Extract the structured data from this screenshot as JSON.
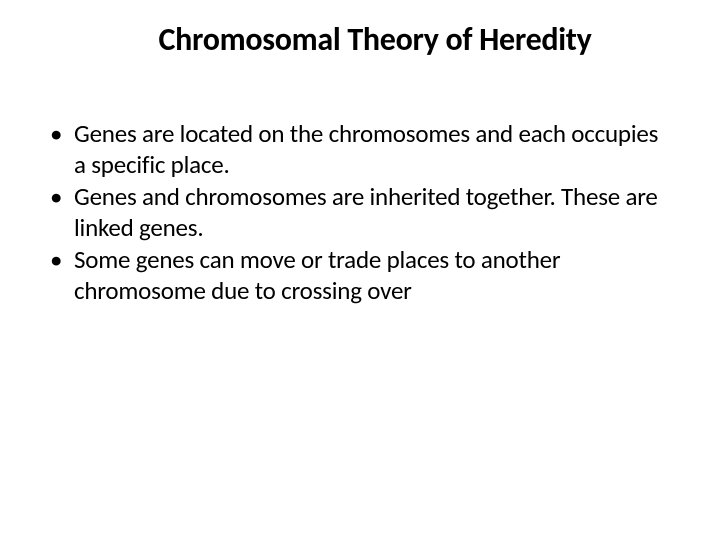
{
  "title": "Chromosomal Theory of Heredity",
  "bullets": [
    "Genes are located on the chromosomes and each occupies a specific place.",
    "Genes and chromosomes are inherited together. These are linked genes.",
    "Some genes can move or trade places to another chromosome due to crossing over"
  ],
  "style": {
    "background_color": "#ffffff",
    "text_color": "#000000",
    "title_fontsize": 32,
    "title_fontweight": 700,
    "body_fontsize": 25,
    "font_family": "Calibri"
  }
}
